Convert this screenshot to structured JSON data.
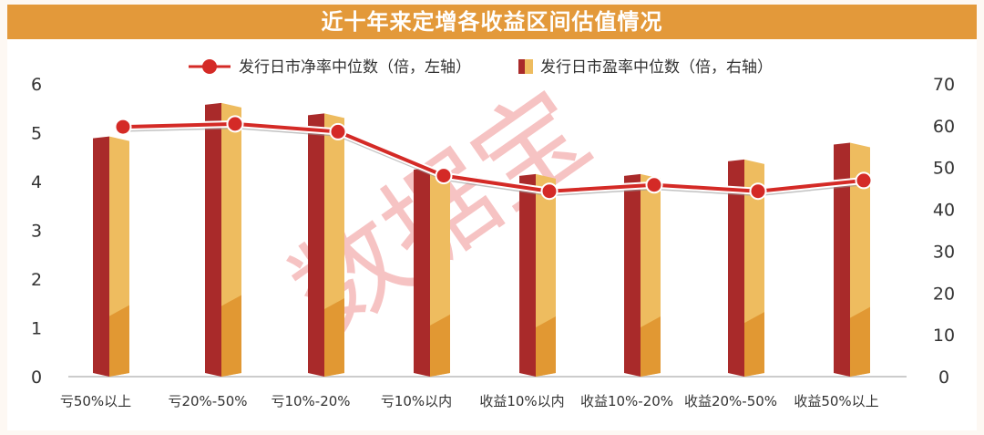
{
  "title": "近十年来定增各收益区间估值情况",
  "watermark": "数据宝",
  "chart_data": {
    "type": "bar+line",
    "title": "近十年来定增各收益区间估值情况",
    "categories": [
      "亏50%以上",
      "亏20%-50%",
      "亏10%-20%",
      "亏10%以内",
      "收益10%以内",
      "收益10%-20%",
      "收益20%-50%",
      "收益50%以上"
    ],
    "series": [
      {
        "name": "发行日市净率中位数（倍，左轴）",
        "type": "line",
        "axis": "left",
        "color": "#d42a26",
        "values": [
          5.12,
          5.18,
          5.02,
          4.12,
          3.8,
          3.93,
          3.8,
          4.02
        ]
      },
      {
        "name": "发行日市盈率中位数（倍，右轴）",
        "type": "bar",
        "axis": "right",
        "color": "#a92a2a",
        "values": [
          57,
          65,
          62.5,
          49.5,
          48,
          48,
          51.5,
          55.5
        ]
      }
    ],
    "left_axis": {
      "ylim": [
        0,
        6
      ],
      "ticks": [
        "0",
        "1",
        "2",
        "3",
        "4",
        "5",
        "6"
      ]
    },
    "right_axis": {
      "ylim": [
        0,
        70
      ],
      "ticks": [
        "0",
        "10",
        "20",
        "30",
        "40",
        "50",
        "60",
        "70"
      ]
    },
    "legend": "top-center",
    "grid": false
  }
}
